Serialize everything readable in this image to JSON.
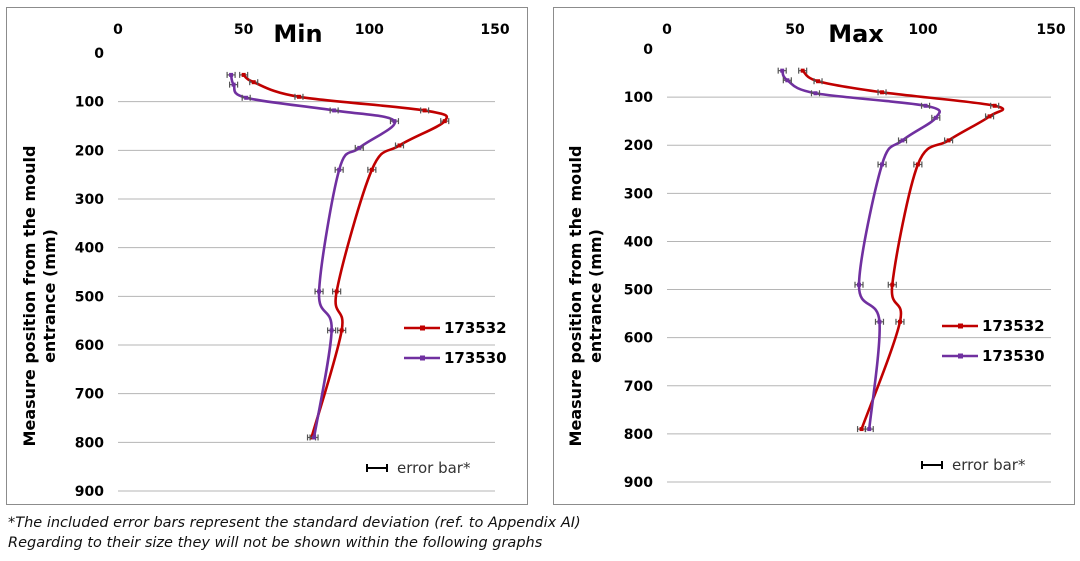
{
  "chart_data": [
    {
      "type": "line",
      "title": "Min",
      "ylabel_lines": [
        "Measure position from the mould",
        "entrance (mm)"
      ],
      "x_ticks": [
        0,
        50,
        100,
        150
      ],
      "y_ticks": [
        0,
        100,
        200,
        300,
        400,
        500,
        600,
        700,
        800,
        900
      ],
      "xlim": [
        0,
        150
      ],
      "ylim": [
        0,
        900
      ],
      "y_inverted": true,
      "x_axis_position": "top",
      "grid": "horizontal",
      "legend_position": "right",
      "series": [
        {
          "name": "173532",
          "color": "#c00000",
          "points": [
            [
              50,
              45
            ],
            [
              54,
              60
            ],
            [
              72,
              90
            ],
            [
              122,
              118
            ],
            [
              130,
              140
            ],
            [
              112,
              190
            ],
            [
              101,
              240
            ],
            [
              87,
              490
            ],
            [
              89,
              570
            ],
            [
              77,
              790
            ]
          ]
        },
        {
          "name": "173530",
          "color": "#7030a0",
          "points": [
            [
              45,
              45
            ],
            [
              46,
              65
            ],
            [
              51,
              92
            ],
            [
              86,
              118
            ],
            [
              110,
              140
            ],
            [
              96,
              195
            ],
            [
              88,
              240
            ],
            [
              80,
              490
            ],
            [
              85,
              570
            ],
            [
              78,
              790
            ]
          ]
        }
      ],
      "error_bar_label": "error bar*"
    },
    {
      "type": "line",
      "title": "Max",
      "ylabel_lines": [
        "Measure position from the mould",
        "entrance (mm)"
      ],
      "x_ticks": [
        0,
        50,
        100,
        150
      ],
      "y_ticks": [
        0,
        100,
        200,
        300,
        400,
        500,
        600,
        700,
        800,
        900
      ],
      "xlim": [
        0,
        150
      ],
      "ylim": [
        0,
        900
      ],
      "y_inverted": true,
      "x_axis_position": "top",
      "grid": "horizontal",
      "legend_position": "right",
      "series": [
        {
          "name": "173532",
          "color": "#c00000",
          "points": [
            [
              53,
              45
            ],
            [
              59,
              67
            ],
            [
              84,
              90
            ],
            [
              128,
              118
            ],
            [
              126,
              140
            ],
            [
              110,
              190
            ],
            [
              98,
              240
            ],
            [
              88,
              490
            ],
            [
              91,
              567
            ],
            [
              76,
              790
            ]
          ]
        },
        {
          "name": "173530",
          "color": "#7030a0",
          "points": [
            [
              45,
              45
            ],
            [
              47,
              65
            ],
            [
              58,
              92
            ],
            [
              101,
              118
            ],
            [
              105,
              143
            ],
            [
              92,
              190
            ],
            [
              84,
              240
            ],
            [
              75,
              490
            ],
            [
              83,
              567
            ],
            [
              79,
              790
            ]
          ]
        }
      ],
      "error_bar_label": "error bar*"
    }
  ],
  "footnote": {
    "line1": "*The included error bars represent the standard deviation (ref. to Appendix AI)",
    "line2": "Regarding to their size they will not be shown within the following graphs"
  }
}
